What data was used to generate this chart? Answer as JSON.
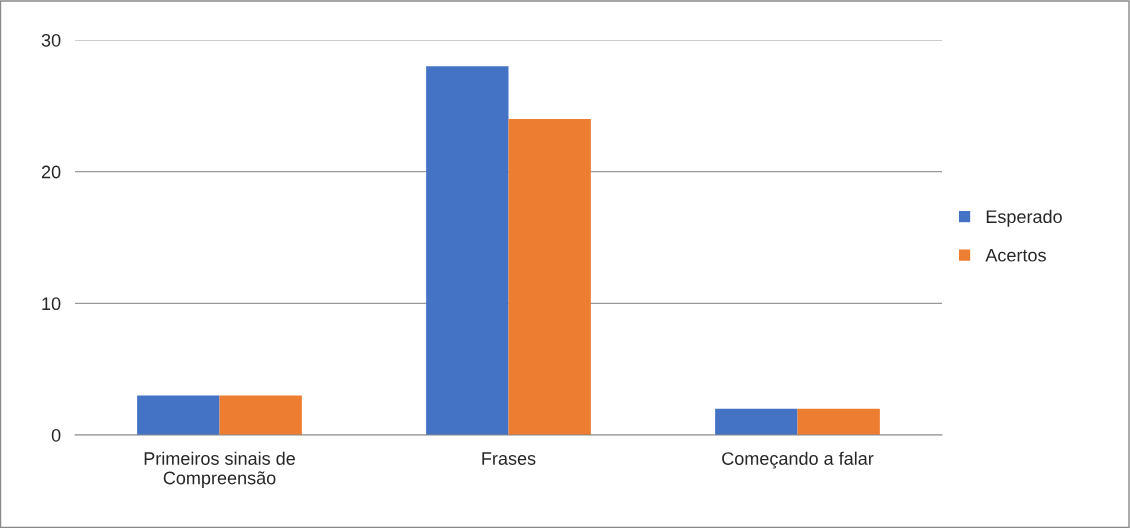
{
  "chart_data": {
    "type": "bar",
    "categories": [
      "Primeiros sinais de Compreensão",
      "Frases",
      "Começando a falar"
    ],
    "series": [
      {
        "name": "Esperado",
        "color": "#4472c4",
        "values": [
          3,
          28,
          2
        ]
      },
      {
        "name": "Acertos",
        "color": "#ed7d31",
        "values": [
          3,
          24,
          2
        ]
      }
    ],
    "ylim": [
      0,
      30
    ],
    "yticks": [
      0,
      10,
      20,
      30
    ],
    "grid": "y",
    "legend": "right"
  }
}
